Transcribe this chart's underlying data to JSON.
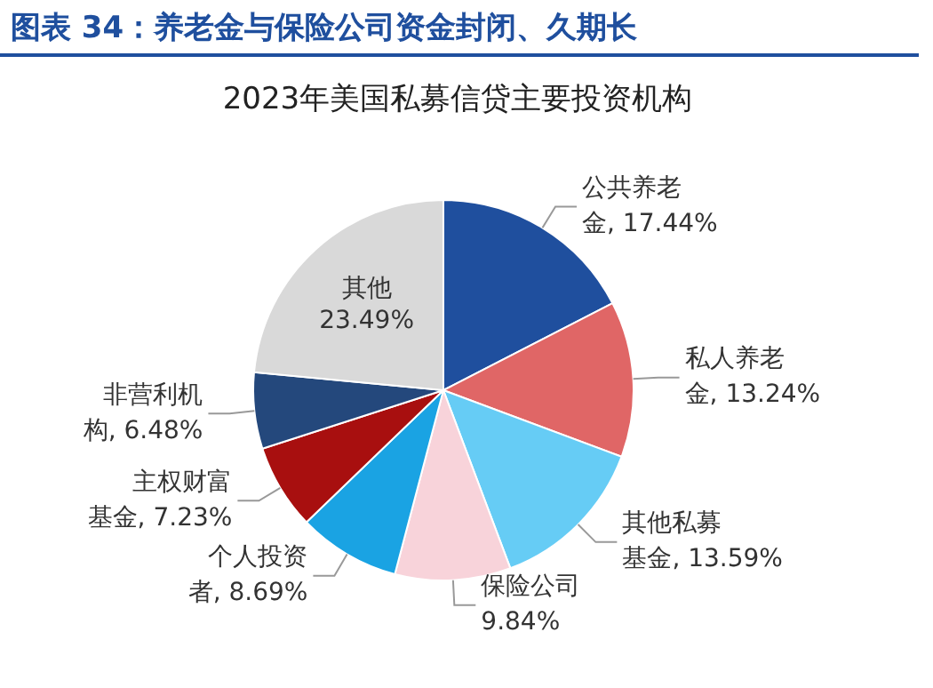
{
  "chart_data": {
    "type": "pie",
    "title": "图表 34：养老金与保险公司资金封闭、久期长",
    "subtitle": "2023年美国私募信贷主要投资机构",
    "categories": [
      "公共养老金",
      "私人养老金",
      "其他私募基金",
      "保险公司",
      "个人投资者",
      "主权财富基金",
      "非营利机构",
      "其他"
    ],
    "value_labels": [
      "17.44%",
      "13.24%",
      "13.59%",
      "9.84%",
      "8.69%",
      "7.23%",
      "6.48%",
      "23.49%"
    ],
    "values": [
      17.44,
      13.24,
      13.59,
      9.84,
      8.69,
      7.23,
      6.48,
      23.49
    ],
    "colors": [
      "#1f4f9e",
      "#e06666",
      "#66ccf5",
      "#f8d3da",
      "#1aa3e3",
      "#a80f0f",
      "#24487c",
      "#d9d9d9"
    ],
    "legend": false
  }
}
